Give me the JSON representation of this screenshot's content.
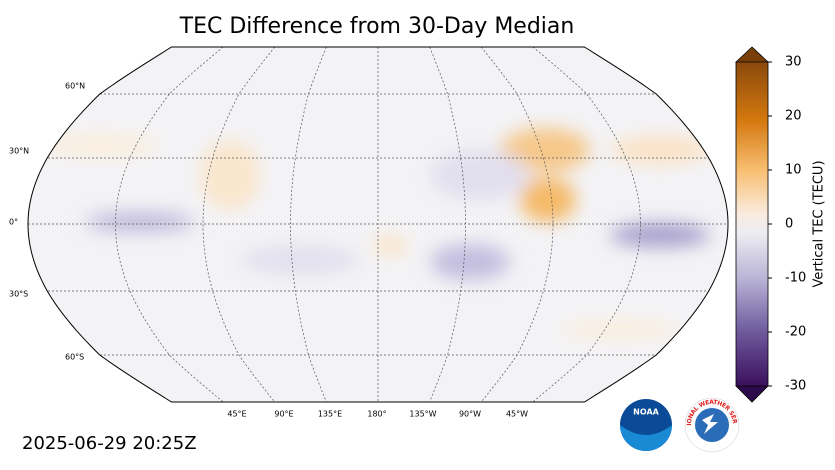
{
  "header": {
    "title": "TEC Difference from 30-Day Median"
  },
  "map": {
    "lat_labels": [
      "60°N",
      "30°N",
      "0°",
      "30°S",
      "60°S"
    ],
    "lon_labels": [
      "45°E",
      "90°E",
      "135°E",
      "180°",
      "135°W",
      "90°W",
      "45°W"
    ]
  },
  "colorbar": {
    "label": "Vertical TEC (TECU)",
    "clim": [
      -30,
      30
    ],
    "ticks": [
      30,
      20,
      10,
      0,
      -10,
      -20,
      -30
    ]
  },
  "footer": {
    "timestamp": "2025-06-29 20:25Z",
    "noaa_logo": "NOAA",
    "nws_logo": "NATIONAL WEATHER SERVICE"
  }
}
